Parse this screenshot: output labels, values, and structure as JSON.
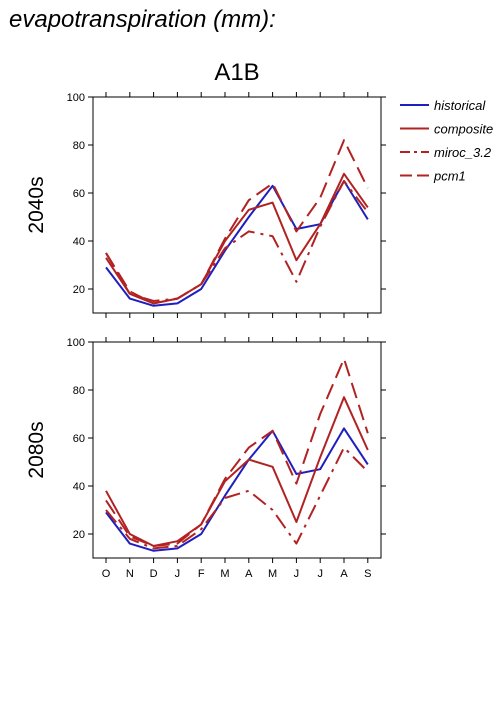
{
  "title": "evapotranspiration (mm):",
  "chart_data": {
    "type": "line",
    "subtitle": "A1B",
    "categories": [
      "O",
      "N",
      "D",
      "J",
      "F",
      "M",
      "A",
      "M",
      "J",
      "J",
      "A",
      "S"
    ],
    "ylim": [
      10,
      100
    ],
    "yticks": [
      20,
      40,
      60,
      80,
      100
    ],
    "ytick_labels": [
      "20",
      "40",
      "60",
      "80",
      "100"
    ],
    "legend": {
      "placement": "right",
      "entries": [
        "historical",
        "composite",
        "miroc_3.2",
        "pcm1"
      ]
    },
    "series_styles": [
      {
        "name": "historical",
        "color": "#1f1fbf",
        "dash": "solid"
      },
      {
        "name": "composite",
        "color": "#b22222",
        "dash": "solid"
      },
      {
        "name": "miroc_3.2",
        "color": "#b22222",
        "dash": "dashdot"
      },
      {
        "name": "pcm1",
        "color": "#b22222",
        "dash": "dashed"
      }
    ],
    "panels": [
      {
        "ylabel": "2040s",
        "series": [
          {
            "name": "historical",
            "values": [
              29,
              16,
              13,
              14,
              20,
              36,
              50,
              63,
              45,
              47,
              65,
              49
            ]
          },
          {
            "name": "composite",
            "values": [
              33,
              18,
              14,
              16,
              22,
              40,
              53,
              56,
              32,
              47,
              68,
              54
            ]
          },
          {
            "name": "miroc_3.2",
            "values": [
              35,
              18,
              15,
              16,
              22,
              37,
              44,
              42,
              23,
              46,
              65,
              52
            ]
          },
          {
            "name": "pcm1",
            "values": [
              35,
              19,
              14,
              16,
              22,
              41,
              57,
              64,
              44,
              58,
              82,
              62
            ]
          }
        ]
      },
      {
        "ylabel": "2080s",
        "series": [
          {
            "name": "historical",
            "values": [
              29,
              16,
              13,
              14,
              20,
              36,
              51,
              63,
              45,
              47,
              64,
              49
            ]
          },
          {
            "name": "composite",
            "values": [
              38,
              20,
              15,
              17,
              24,
              42,
              51,
              48,
              25,
              52,
              77,
              55
            ]
          },
          {
            "name": "miroc_3.2",
            "values": [
              30,
              18,
              14,
              15,
              22,
              35,
              38,
              30,
              16,
              36,
              56,
              46
            ]
          },
          {
            "name": "pcm1",
            "values": [
              34,
              19,
              15,
              16,
              24,
              43,
              56,
              63,
              41,
              70,
              93,
              62
            ]
          }
        ]
      }
    ]
  }
}
